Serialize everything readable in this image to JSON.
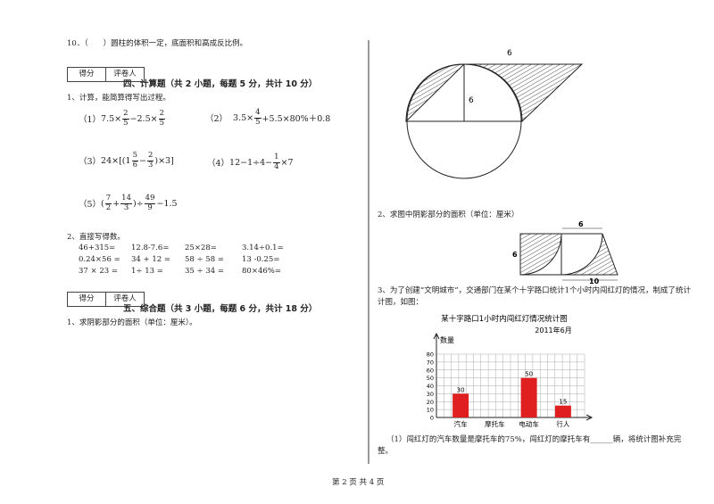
{
  "left": {
    "q10": "10．（　　）圆柱的体积一定，底面积和高成反比例。",
    "section4": {
      "score": "得分",
      "grader": "评卷人",
      "title": "四、计算题（共 2 小题，每题 5 分，共计 10 分）"
    },
    "q1": "1、计算，能简算得写出过程。",
    "calc": [
      {
        "label": "（1）",
        "tokens": [
          "7.5×",
          {
            "n": "2",
            "d": "5"
          },
          "−2.5×",
          {
            "n": "2",
            "d": "5"
          }
        ]
      },
      {
        "label": "（2）",
        "tokens": [
          "3.5×",
          {
            "n": "4",
            "d": "5"
          },
          "+5.5×80%＋0.8"
        ]
      },
      {
        "label": "（3）",
        "tokens": [
          "24×[(1",
          {
            "n": "5",
            "d": "6"
          },
          "−",
          {
            "n": "2",
            "d": "3"
          },
          ")×3]"
        ]
      },
      {
        "label": "（4）",
        "tokens": [
          "12−1÷4−",
          {
            "n": "1",
            "d": "4"
          },
          "×7"
        ]
      },
      {
        "label": "（5）",
        "tokens": [
          "(",
          {
            "n": "7",
            "d": "2"
          },
          "+",
          {
            "n": "14",
            "d": "3"
          },
          ")÷",
          {
            "n": "49",
            "d": "9"
          },
          "−1.5"
        ]
      }
    ],
    "q2": "2、直接写得数。",
    "direct": [
      [
        "46+315=",
        "12.8-7.6=",
        "25×28=",
        "3.14÷0.1="
      ],
      [
        "0.24×56 =",
        "34 + 12 =",
        "58 ÷ 58 =",
        "13 -0.25="
      ],
      [
        "37 × 23 =",
        "1÷ 13 =",
        "35 ÷ 34 =",
        "80×46%="
      ]
    ],
    "section5": {
      "score": "得分",
      "grader": "评卷人",
      "title": "五、综合题（共 3 小题，每题 6 分，共计 18 分）"
    },
    "q5_1": "1、求阴影部分的面积（单位：厘米）。"
  },
  "right": {
    "figure1_labels": [
      "6",
      "6"
    ],
    "q2": "2、求图中阴影部分的面积（单位：厘米）",
    "figure2_labels": [
      "6",
      "6",
      "10"
    ],
    "q3": "3、为了创建“文明城市”，交通部门在某个十字路口统计1个小时内闯红灯的情况，制成了统计",
    "q3_cont": "计图，如图：",
    "q3_1": "（1）闯红灯的汽车数量是摩托车的75%，闯红灯的摩托车有______辆，将统计图补充完",
    "q3_1_cont": "整。"
  },
  "chart_data": {
    "type": "bar",
    "title": "某十字路口1小时内闯红灯情况统计图",
    "subtitle": "2011年6月",
    "y_label": "数量",
    "categories": [
      "汽车",
      "摩托车",
      "电动车",
      "行人"
    ],
    "values": [
      30,
      null,
      50,
      15
    ],
    "color": "#e02020",
    "ylim": [
      0,
      80
    ],
    "yticks": [
      0,
      10,
      20,
      30,
      40,
      50,
      60,
      70,
      80
    ],
    "grid": true
  },
  "footer": "第 2 页 共 4 页"
}
